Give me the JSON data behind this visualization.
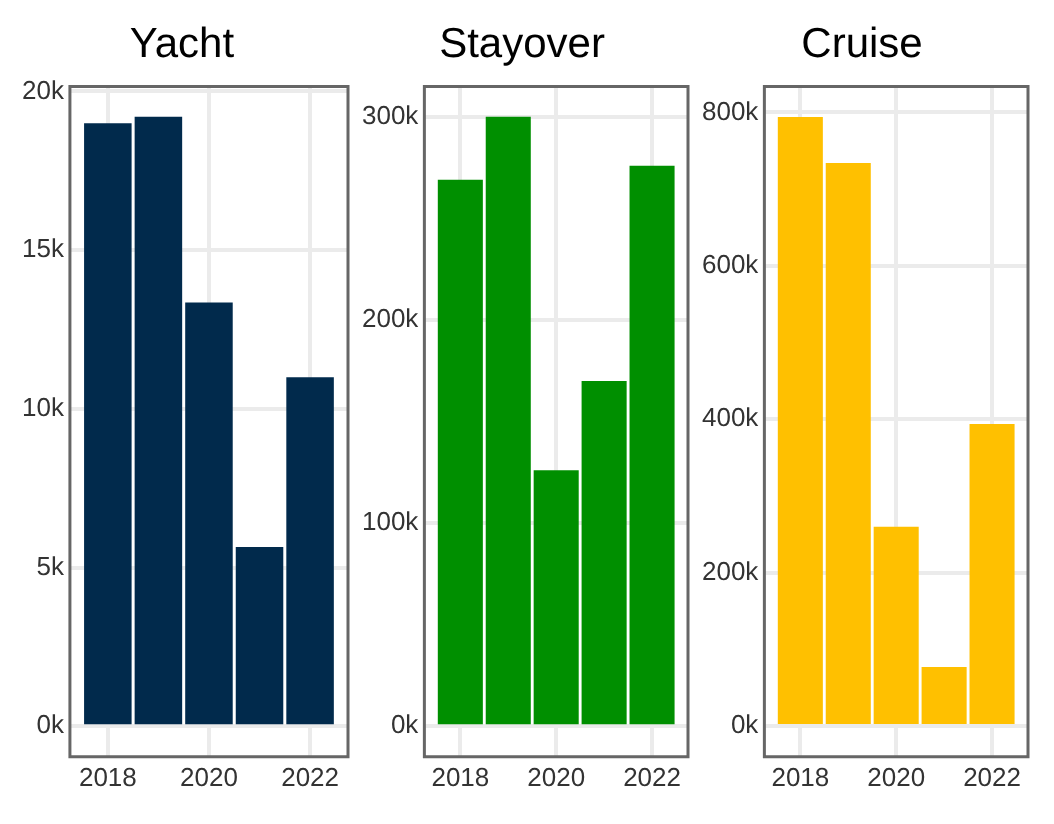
{
  "chart_data": [
    {
      "type": "bar",
      "title": "Yacht",
      "x": [
        2018,
        2019,
        2020,
        2021,
        2022
      ],
      "values": [
        19000,
        19200,
        13350,
        5650,
        11000
      ],
      "color": "#012a4c",
      "xlim": [
        2017.25,
        2022.75
      ],
      "xticks": [
        2018,
        2020,
        2022
      ],
      "ylim": [
        -960,
        20160
      ],
      "yticks": [
        {
          "value": 0,
          "label": "0k"
        },
        {
          "value": 5000,
          "label": "5k"
        },
        {
          "value": 10000,
          "label": "10k"
        },
        {
          "value": 15000,
          "label": "15k"
        },
        {
          "value": 20000,
          "label": "20k"
        }
      ],
      "grid": true,
      "legend": false
    },
    {
      "type": "bar",
      "title": "Stayover",
      "x": [
        2018,
        2019,
        2020,
        2021,
        2022
      ],
      "values": [
        269000,
        300000,
        126000,
        170000,
        276000
      ],
      "color": "#008f00",
      "xlim": [
        2017.25,
        2022.75
      ],
      "xticks": [
        2018,
        2020,
        2022
      ],
      "ylim": [
        -15000,
        315000
      ],
      "yticks": [
        {
          "value": 0,
          "label": "0k"
        },
        {
          "value": 100000,
          "label": "100k"
        },
        {
          "value": 200000,
          "label": "200k"
        },
        {
          "value": 300000,
          "label": "300k"
        }
      ],
      "grid": true,
      "legend": false
    },
    {
      "type": "bar",
      "title": "Cruise",
      "x": [
        2018,
        2019,
        2020,
        2021,
        2022
      ],
      "values": [
        794000,
        734000,
        260000,
        77000,
        394000
      ],
      "color": "#ffc000",
      "xlim": [
        2017.25,
        2022.75
      ],
      "xticks": [
        2018,
        2020,
        2022
      ],
      "ylim": [
        -40000,
        834000
      ],
      "yticks": [
        {
          "value": 0,
          "label": "0k"
        },
        {
          "value": 200000,
          "label": "200k"
        },
        {
          "value": 400000,
          "label": "400k"
        },
        {
          "value": 600000,
          "label": "600k"
        },
        {
          "value": 800000,
          "label": "800k"
        }
      ],
      "grid": true,
      "legend": false
    }
  ]
}
